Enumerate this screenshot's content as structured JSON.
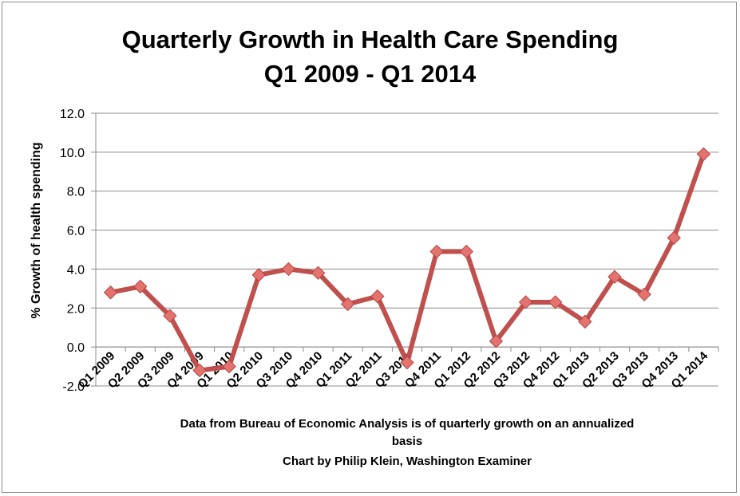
{
  "chart_data": {
    "type": "line",
    "title": "Quarterly Growth in Health Care Spending",
    "subtitle": "Q1 2009 - Q1 2014",
    "ylabel": "% Growth of health spending",
    "xlabel": "",
    "ylim": [
      -2.0,
      12.0
    ],
    "yticks": [
      "-2.0",
      "0.0",
      "2.0",
      "4.0",
      "6.0",
      "8.0",
      "10.0",
      "12.0"
    ],
    "grid": true,
    "line_color": "#c0504d",
    "marker_color": "#e2736f",
    "categories": [
      "Q1 2009",
      "Q2 2009",
      "Q3 2009",
      "Q4 2009",
      "Q1 2010",
      "Q2 2010",
      "Q3 2010",
      "Q4 2010",
      "Q1 2011",
      "Q2 2011",
      "Q3 2011",
      "Q4 2011",
      "Q1 2012",
      "Q2 2012",
      "Q3 2012",
      "Q4 2012",
      "Q1 2013",
      "Q2 2013",
      "Q3 2013",
      "Q4 2013",
      "Q1 2014"
    ],
    "series": [
      {
        "values": [
          2.8,
          3.1,
          1.6,
          -1.2,
          -1.0,
          3.7,
          4.0,
          3.8,
          2.2,
          2.6,
          -0.8,
          4.9,
          4.9,
          0.3,
          2.3,
          2.3,
          1.3,
          3.6,
          2.7,
          5.6,
          9.9
        ]
      }
    ]
  },
  "note_line1": "Data from Bureau of Economic Analysis is of quarterly growth on an annualized",
  "note_line2": "basis",
  "note_line3": "Chart by Philip Klein, Washington Examiner"
}
